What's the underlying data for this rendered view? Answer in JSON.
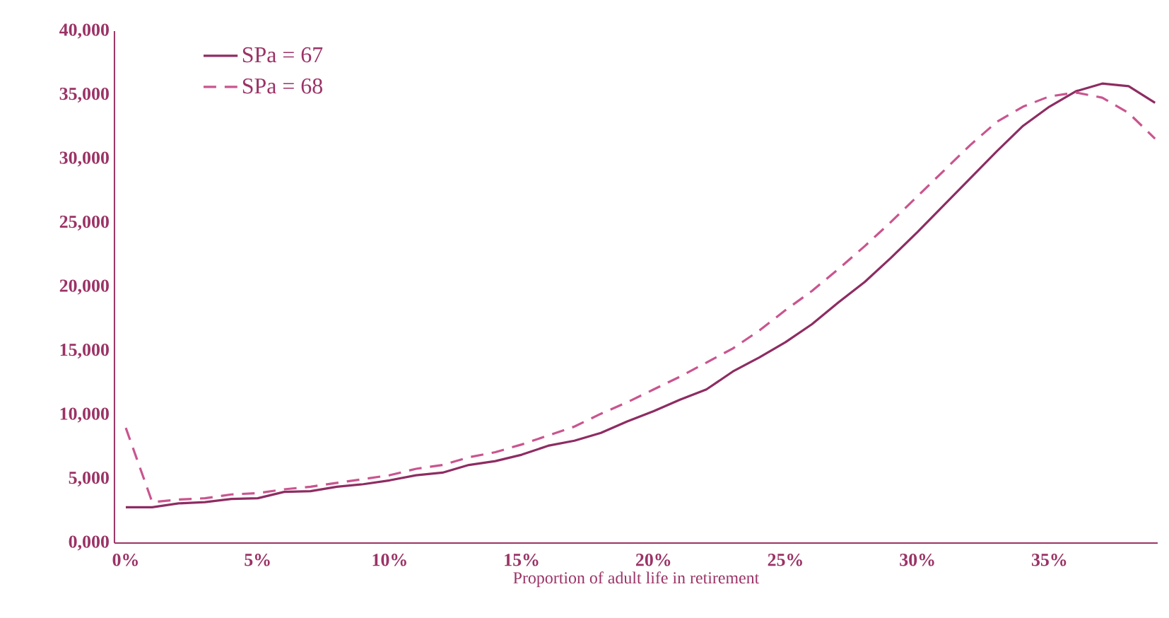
{
  "chart_data": {
    "type": "line",
    "xlabel": "Proportion of adult life in retirement",
    "x": [
      0,
      1,
      2,
      3,
      4,
      5,
      6,
      7,
      8,
      9,
      10,
      11,
      12,
      13,
      14,
      15,
      16,
      17,
      18,
      19,
      20,
      21,
      22,
      23,
      24,
      25,
      26,
      27,
      28,
      29,
      30,
      31,
      32,
      33,
      34,
      35,
      36,
      37,
      38,
      39
    ],
    "series": [
      {
        "name": "SPa = 67",
        "color": "#8e2c62",
        "line_style": "solid",
        "values": [
          2800,
          2800,
          3100,
          3200,
          3450,
          3500,
          4000,
          4050,
          4400,
          4600,
          4900,
          5300,
          5500,
          6100,
          6400,
          6900,
          7600,
          8000,
          8600,
          9500,
          10300,
          11200,
          12000,
          13400,
          14500,
          15700,
          17100,
          18800,
          20400,
          22300,
          24300,
          26400,
          28500,
          30600,
          32600,
          34100,
          35300,
          35900,
          35700,
          34400
        ]
      },
      {
        "name": "SPa = 68",
        "color": "#c9558f",
        "line_style": "dashed",
        "values": [
          9000,
          3200,
          3400,
          3500,
          3800,
          3900,
          4200,
          4400,
          4700,
          5000,
          5300,
          5800,
          6100,
          6700,
          7100,
          7700,
          8400,
          9100,
          10100,
          11000,
          12000,
          13000,
          14100,
          15200,
          16600,
          18200,
          19700,
          21400,
          23200,
          25100,
          27100,
          29100,
          31100,
          32900,
          34100,
          34900,
          35200,
          34800,
          33600,
          31600
        ]
      }
    ],
    "xlim": [
      -0.43,
      39.1
    ],
    "xticks": [
      {
        "value": 0,
        "label": "0%"
      },
      {
        "value": 5,
        "label": "5%"
      },
      {
        "value": 10,
        "label": "10%"
      },
      {
        "value": 15,
        "label": "15%"
      },
      {
        "value": 20,
        "label": "20%"
      },
      {
        "value": 25,
        "label": "25%"
      },
      {
        "value": 30,
        "label": "30%"
      },
      {
        "value": 35,
        "label": "35%"
      }
    ],
    "ylim": [
      0,
      40000
    ],
    "yticks": [
      {
        "value": 0,
        "label": "0,000"
      },
      {
        "value": 5000,
        "label": "5,000"
      },
      {
        "value": 10000,
        "label": "10,000"
      },
      {
        "value": 15000,
        "label": "15,000"
      },
      {
        "value": 20000,
        "label": "20,000"
      },
      {
        "value": 25000,
        "label": "25,000"
      },
      {
        "value": 30000,
        "label": "30,000"
      },
      {
        "value": 35000,
        "label": "35,000"
      },
      {
        "value": 40000,
        "label": "40,000"
      }
    ],
    "grid": false,
    "legend": "top left",
    "marker": "none"
  }
}
